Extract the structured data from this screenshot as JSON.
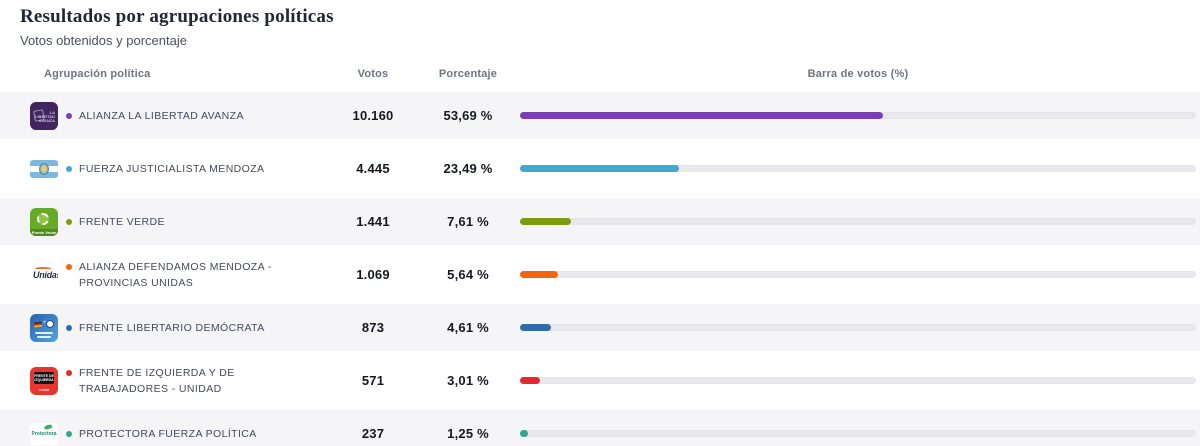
{
  "page": {
    "title": "Resultados por agrupaciones políticas",
    "subtitle": "Votos obtenidos y porcentaje"
  },
  "table": {
    "headers": {
      "group": "Agrupación política",
      "votes": "Votos",
      "percentage": "Porcentaje",
      "bar": "Barra de votos (%)"
    },
    "rows": [
      {
        "name": "ALIANZA LA LIBERTAD AVANZA",
        "votes": "10.160",
        "percentage": "53,69 %",
        "pct": 53.69,
        "color": "#7b3fb5",
        "logo": "alianza-la-libertad-avanza-logo"
      },
      {
        "name": "FUERZA JUSTICIALISTA MENDOZA",
        "votes": "4.445",
        "percentage": "23,49 %",
        "pct": 23.49,
        "color": "#41a8d0",
        "logo": "fuerza-justicialista-mendoza-logo"
      },
      {
        "name": "FRENTE VERDE",
        "votes": "1.441",
        "percentage": "7,61 %",
        "pct": 7.61,
        "color": "#7d9b0f",
        "logo": "frente-verde-logo"
      },
      {
        "name": "ALIANZA DEFENDAMOS MENDOZA - PROVINCIAS UNIDAS",
        "votes": "1.069",
        "percentage": "5,64 %",
        "pct": 5.64,
        "color": "#f2650f",
        "logo": "defendamos-mendoza-provincias-unidas-logo"
      },
      {
        "name": "FRENTE LIBERTARIO DEMÓCRATA",
        "votes": "873",
        "percentage": "4,61 %",
        "pct": 4.61,
        "color": "#2e6cab",
        "logo": "frente-libertario-democrata-logo"
      },
      {
        "name": "FRENTE DE IZQUIERDA Y DE TRABAJADORES - UNIDAD",
        "votes": "571",
        "percentage": "3,01 %",
        "pct": 3.01,
        "color": "#e02a30",
        "logo": "frente-de-izquierda-logo"
      },
      {
        "name": "PROTECTORA FUERZA POLÍTICA",
        "votes": "237",
        "percentage": "1,25 %",
        "pct": 1.25,
        "color": "#2fa78d",
        "logo": "protectora-fuerza-politica-logo"
      }
    ]
  },
  "colors": {
    "row_alt_bg": "#f5f5f8",
    "bar_track": "#e9e9ed"
  },
  "chart_data": {
    "type": "bar",
    "orientation": "horizontal",
    "title": "Resultados por agrupaciones políticas",
    "subtitle": "Votos obtenidos y porcentaje",
    "categories": [
      "ALIANZA LA LIBERTAD AVANZA",
      "FUERZA JUSTICIALISTA MENDOZA",
      "FRENTE VERDE",
      "ALIANZA DEFENDAMOS MENDOZA - PROVINCIAS UNIDAS",
      "FRENTE LIBERTARIO DEMÓCRATA",
      "FRENTE DE IZQUIERDA Y DE TRABAJADORES - UNIDAD",
      "PROTECTORA FUERZA POLÍTICA"
    ],
    "series": [
      {
        "name": "Votos",
        "values": [
          10160,
          4445,
          1441,
          1069,
          873,
          571,
          237
        ]
      },
      {
        "name": "Porcentaje (%)",
        "values": [
          53.69,
          23.49,
          7.61,
          5.64,
          4.61,
          3.01,
          1.25
        ]
      }
    ],
    "bar_axis_label": "Barra de votos (%)",
    "bar_axis_range": [
      0,
      100
    ],
    "bar_colors": [
      "#7b3fb5",
      "#41a8d0",
      "#7d9b0f",
      "#f2650f",
      "#2e6cab",
      "#e02a30",
      "#2fa78d"
    ],
    "legend": false,
    "grid": false
  }
}
